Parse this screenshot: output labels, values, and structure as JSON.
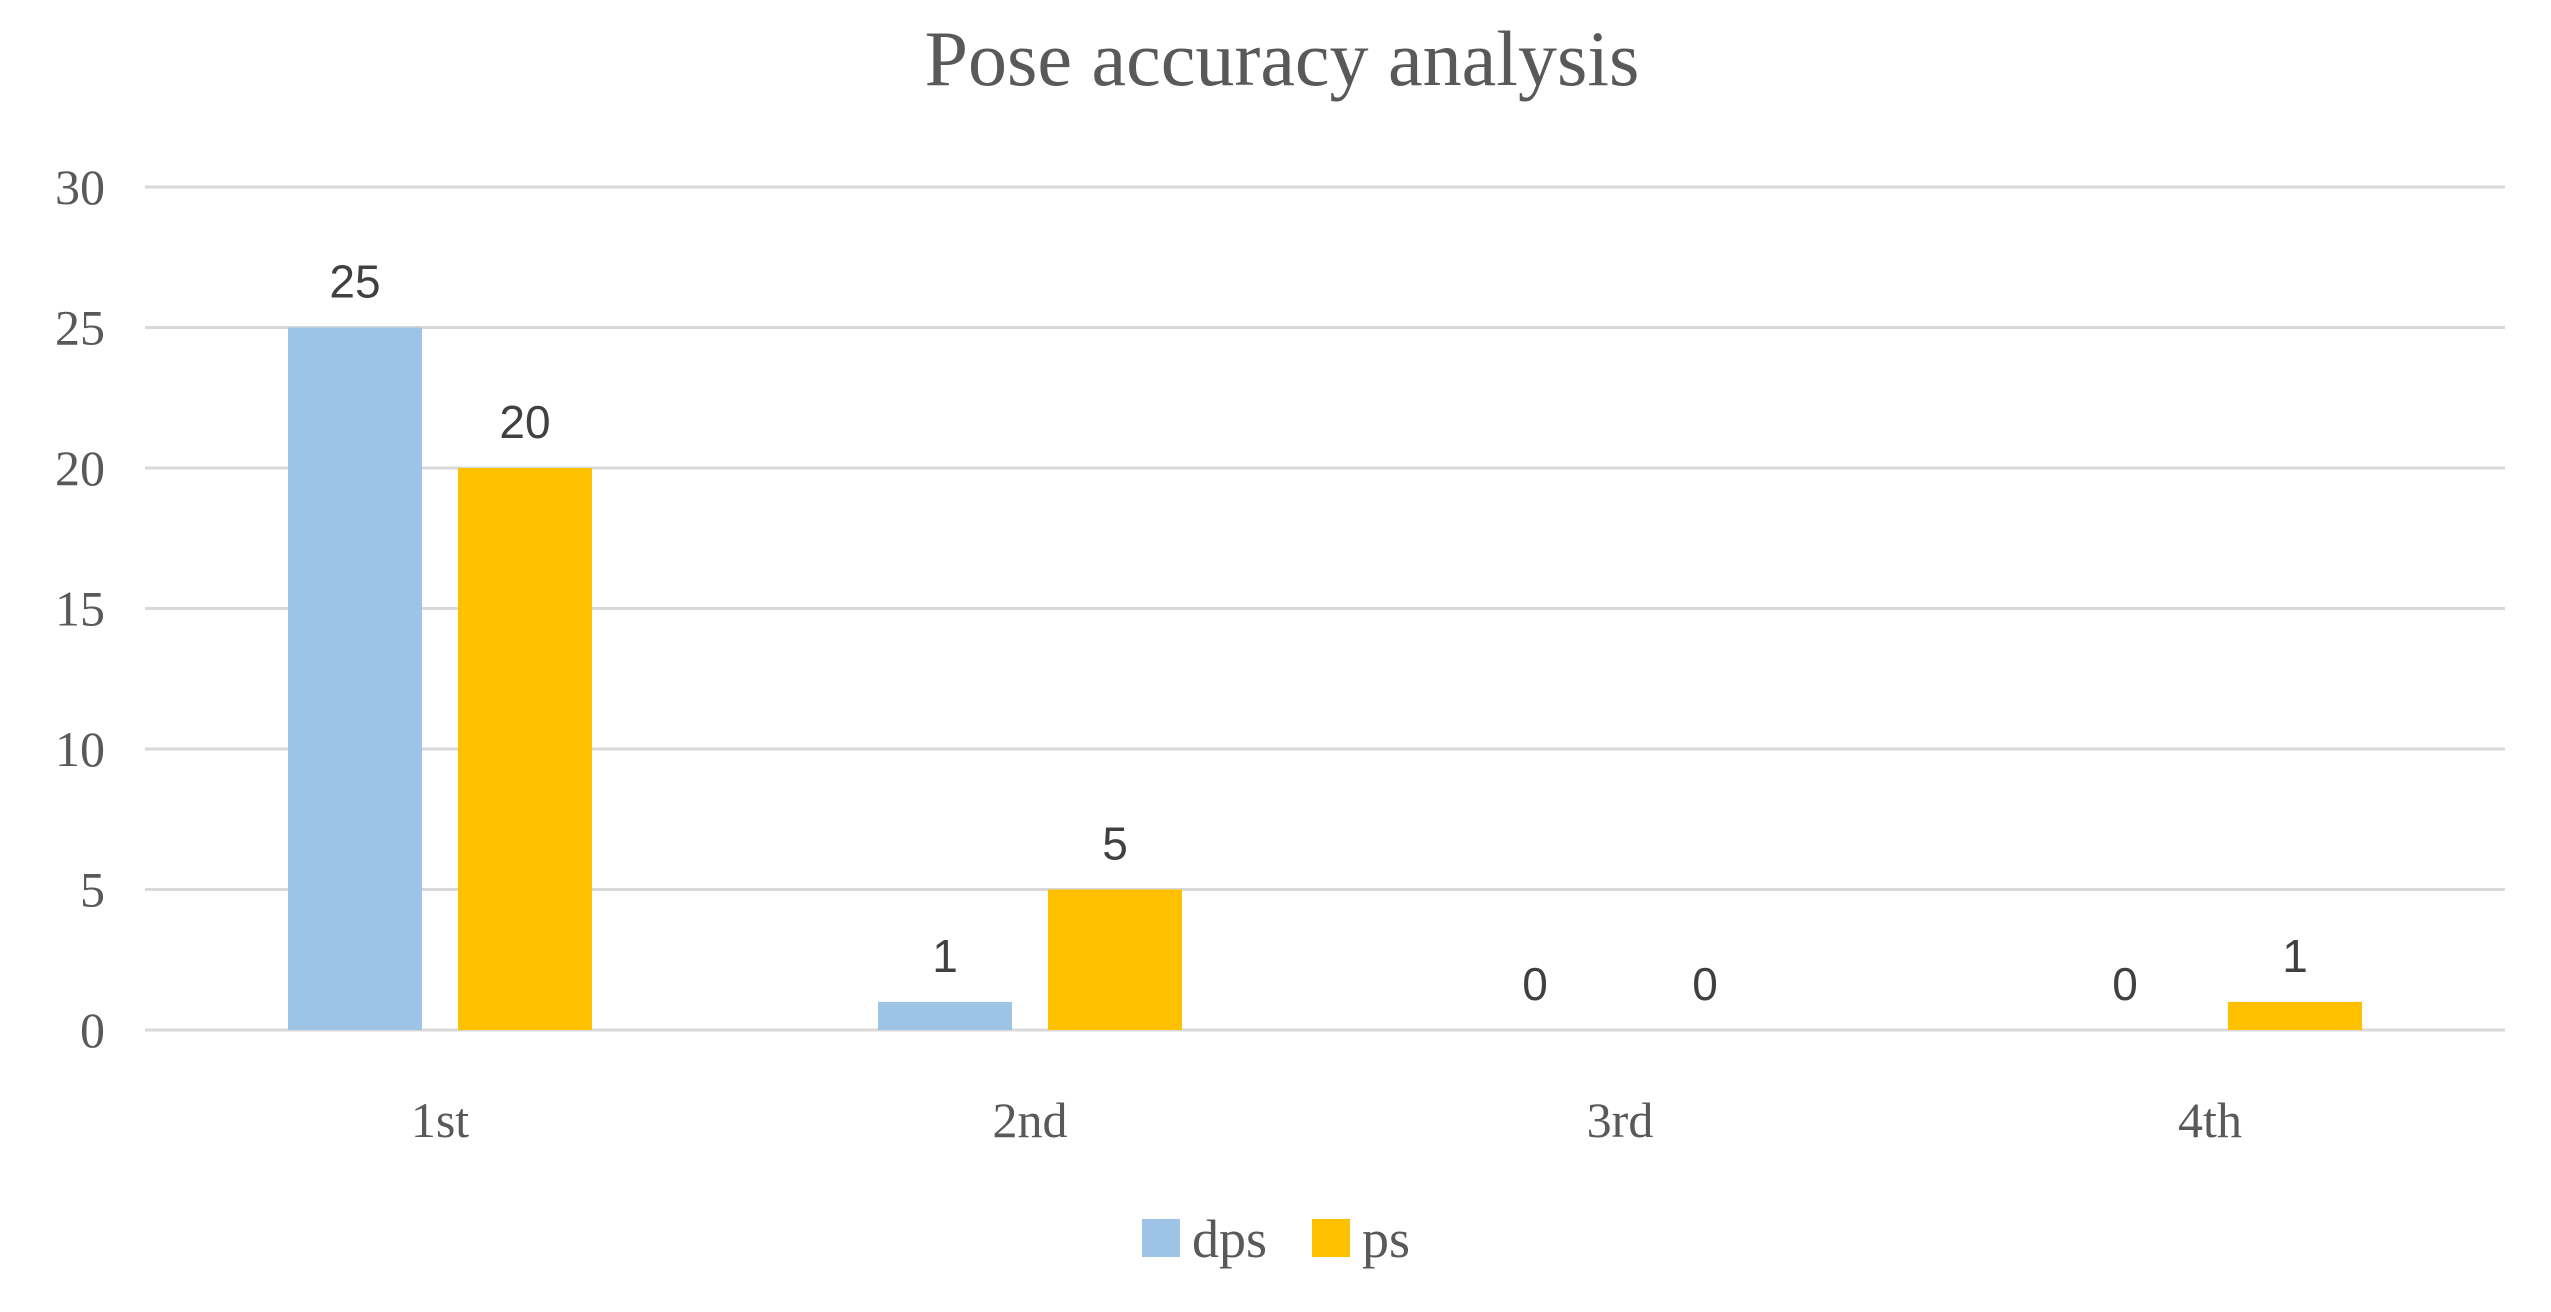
{
  "chart_data": {
    "type": "bar",
    "title": "Pose accuracy analysis",
    "categories": [
      "1st",
      "2nd",
      "3rd",
      "4th"
    ],
    "series": [
      {
        "name": "dps",
        "color": "#9DC3E6",
        "values": [
          25,
          1,
          0,
          0
        ]
      },
      {
        "name": "ps",
        "color": "#FFC000",
        "values": [
          20,
          5,
          0,
          1
        ]
      }
    ],
    "ylim": [
      0,
      30
    ],
    "yticks": [
      0,
      5,
      10,
      15,
      20,
      25,
      30
    ],
    "xlabel": "",
    "ylabel": "",
    "grid": true,
    "legend": "bottom",
    "data_labels": true
  }
}
